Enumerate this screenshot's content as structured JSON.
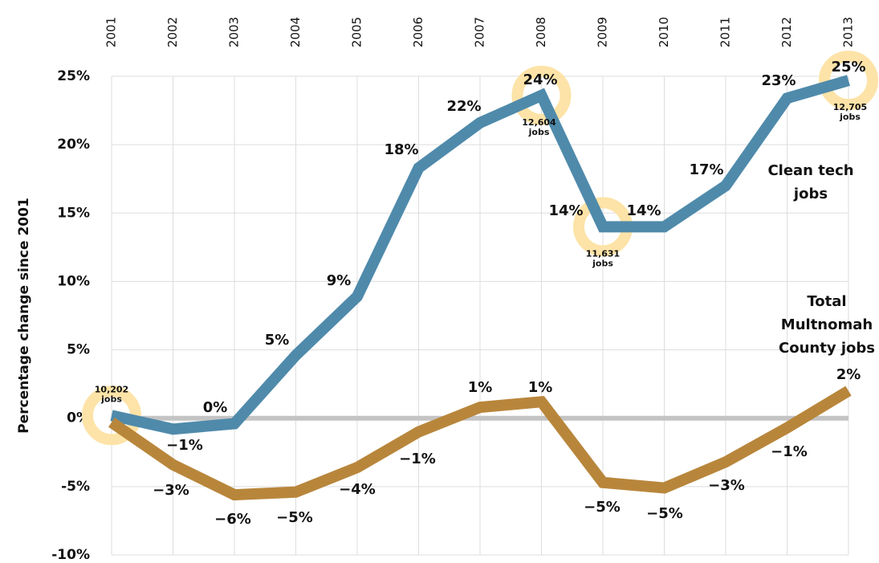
{
  "chart_data": {
    "type": "line",
    "y_axis_label": "Percentage change since 2001",
    "categories": [
      "2001",
      "2002",
      "2003",
      "2004",
      "2005",
      "2006",
      "2007",
      "2008",
      "2009",
      "2010",
      "2011",
      "2012",
      "2013"
    ],
    "series": [
      {
        "name": "Clean tech jobs",
        "label_lines": [
          "Clean tech",
          "jobs"
        ],
        "color": "#4f8aab",
        "values": [
          0.2,
          -0.8,
          -0.4,
          4.6,
          8.9,
          18.3,
          21.6,
          23.6,
          14.0,
          14.0,
          17.0,
          23.4,
          24.7
        ],
        "value_labels": [
          null,
          "−1%",
          "0%",
          "5%",
          "9%",
          "18%",
          "22%",
          "24%",
          "14%",
          "14%",
          "17%",
          "23%",
          "25%"
        ]
      },
      {
        "name": "Total Multnomah County jobs",
        "label_lines": [
          "Total",
          "Multnomah",
          "County jobs"
        ],
        "color": "#b8863b",
        "values": [
          -0.3,
          -3.4,
          -5.6,
          -5.4,
          -3.6,
          -1.0,
          0.8,
          1.2,
          -4.7,
          -5.1,
          -3.2,
          -0.7,
          2.0
        ],
        "value_labels": [
          null,
          "−3%",
          "−6%",
          "−5%",
          "−4%",
          "−1%",
          "1%",
          "1%",
          "−5%",
          "−5%",
          "−3%",
          "−1%",
          "2%"
        ]
      }
    ],
    "annotations": [
      {
        "category": "2001",
        "lines": [
          "10,202",
          "jobs"
        ]
      },
      {
        "category": "2008",
        "lines": [
          "12,604",
          "jobs"
        ]
      },
      {
        "category": "2009",
        "lines": [
          "11,631",
          "jobs"
        ]
      },
      {
        "category": "2013",
        "lines": [
          "12,705",
          "jobs"
        ]
      }
    ],
    "ylim": [
      -10,
      25
    ],
    "yticks": [
      {
        "value": -10,
        "label": "-10%"
      },
      {
        "value": -5,
        "label": "-5%"
      },
      {
        "value": 0,
        "label": "0%"
      },
      {
        "value": 5,
        "label": "5%"
      },
      {
        "value": 10,
        "label": "10%"
      },
      {
        "value": 15,
        "label": "15%"
      },
      {
        "value": 20,
        "label": "20%"
      },
      {
        "value": 25,
        "label": "25%"
      }
    ],
    "grid": true
  }
}
